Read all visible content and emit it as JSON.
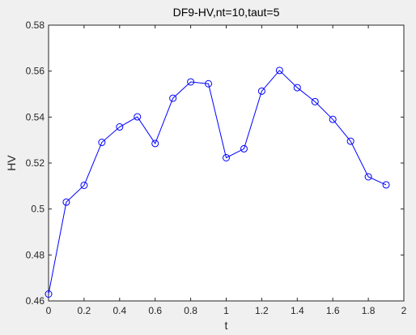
{
  "chart_data": {
    "type": "line",
    "title": "DF9-HV,nt=10,taut=5",
    "xlabel": "t",
    "ylabel": "HV",
    "xlim": [
      0,
      2
    ],
    "ylim": [
      0.46,
      0.58
    ],
    "x_ticks": [
      "0",
      "0.2",
      "0.4",
      "0.6",
      "0.8",
      "1",
      "1.2",
      "1.4",
      "1.6",
      "1.8",
      "2"
    ],
    "y_ticks": [
      "0.46",
      "0.48",
      "0.5",
      "0.52",
      "0.54",
      "0.56",
      "0.58"
    ],
    "grid": false,
    "legend": false,
    "series": [
      {
        "color": "#0000ff",
        "marker": "circle",
        "x": [
          0,
          0.1,
          0.2,
          0.3,
          0.4,
          0.5,
          0.6,
          0.7,
          0.8,
          0.9,
          1.0,
          1.1,
          1.2,
          1.3,
          1.4,
          1.5,
          1.6,
          1.7,
          1.8,
          1.9
        ],
        "y": [
          0.463,
          0.503,
          0.5103,
          0.529,
          0.5357,
          0.5401,
          0.5285,
          0.5482,
          0.5553,
          0.5545,
          0.5223,
          0.5262,
          0.5513,
          0.5603,
          0.5528,
          0.5467,
          0.539,
          0.5295,
          0.514,
          0.5105
        ]
      }
    ]
  }
}
